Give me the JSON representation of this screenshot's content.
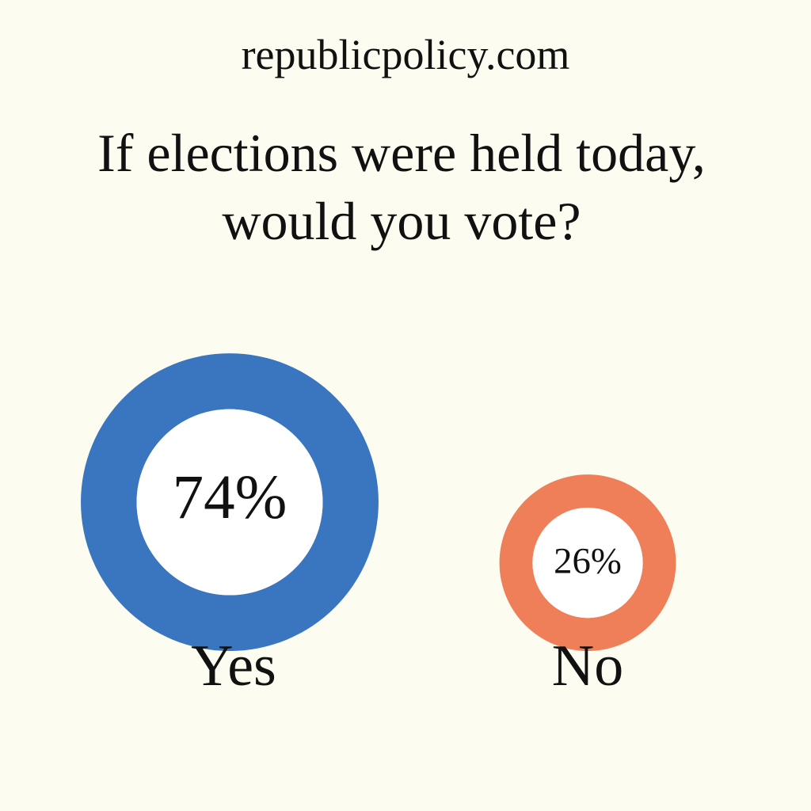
{
  "chart_data": {
    "type": "ring",
    "site": "republicpolicy.com",
    "title": "If elections were held today, would you vote?",
    "categories": [
      "Yes",
      "No"
    ],
    "values": [
      74,
      26
    ],
    "value_labels": [
      "74%",
      "26%"
    ],
    "colors": [
      "#3a76c0",
      "#ef7f58"
    ]
  }
}
